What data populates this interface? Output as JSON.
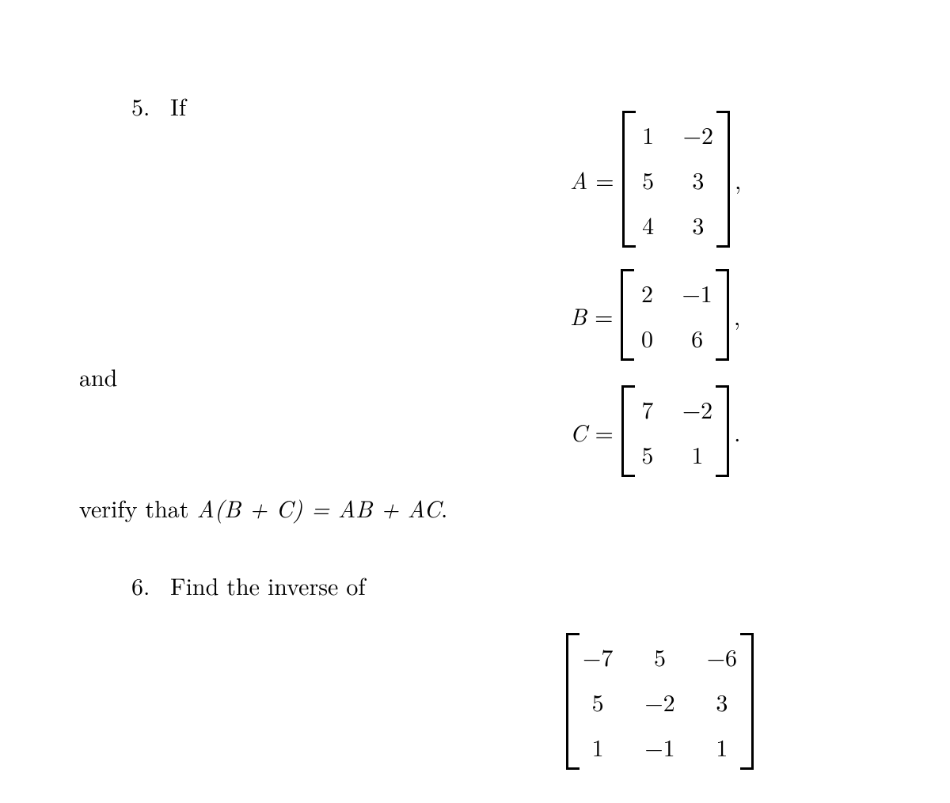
{
  "text_color": "#000000",
  "background_color": "#ffffff",
  "font_family": "Computer Modern (serif)",
  "base_fontsize_pt": 22,
  "problem5": {
    "number": "5.",
    "intro_word": "If",
    "and_word": "and",
    "verify_prefix": "verify that ",
    "verify_equation": "A(B + C) = AB + AC",
    "verify_suffix": ".",
    "A": {
      "symbol": "A",
      "rows": 3,
      "cols": 2,
      "values": [
        [
          "1",
          "−2"
        ],
        [
          "5",
          "3"
        ],
        [
          "4",
          "3"
        ]
      ],
      "trailing": ","
    },
    "B": {
      "symbol": "B",
      "rows": 2,
      "cols": 2,
      "values": [
        [
          "2",
          "−1"
        ],
        [
          "0",
          "6"
        ]
      ],
      "trailing": ","
    },
    "C": {
      "symbol": "C",
      "rows": 2,
      "cols": 2,
      "values": [
        [
          "7",
          "−2"
        ],
        [
          "5",
          "1"
        ]
      ],
      "trailing": "."
    }
  },
  "problem6": {
    "number": "6.",
    "text": "Find the inverse of",
    "matrix": {
      "rows": 3,
      "cols": 3,
      "values": [
        [
          "−7",
          "5",
          "−6"
        ],
        [
          "5",
          "−2",
          "3"
        ],
        [
          "1",
          "−1",
          "1"
        ]
      ]
    }
  }
}
